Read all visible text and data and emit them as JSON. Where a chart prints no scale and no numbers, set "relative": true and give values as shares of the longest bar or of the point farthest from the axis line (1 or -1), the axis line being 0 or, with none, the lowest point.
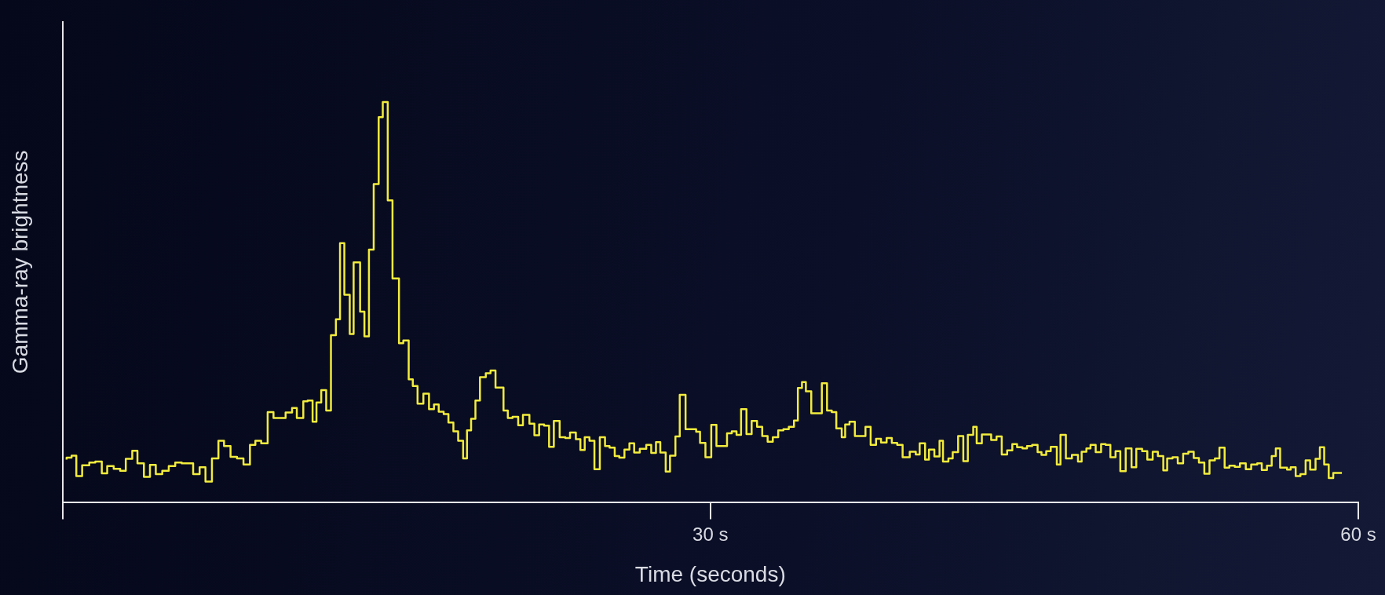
{
  "chart_data": {
    "type": "step",
    "xlabel": "Time (seconds)",
    "ylabel": "Gamma-ray brightness",
    "relative": true,
    "xlim": [
      0,
      60
    ],
    "xticks": [
      {
        "value": 0,
        "label": null
      },
      {
        "value": 30,
        "label": "30 s"
      },
      {
        "value": 60,
        "label": "60 s"
      }
    ],
    "marker": "none",
    "x": [
      0.19,
      0.42,
      0.64,
      0.91,
      1.24,
      1.52,
      1.82,
      2.07,
      2.37,
      2.67,
      2.93,
      3.23,
      3.47,
      3.77,
      4.05,
      4.32,
      4.62,
      4.92,
      5.22,
      5.52,
      6.05,
      6.35,
      6.62,
      6.92,
      7.22,
      7.48,
      7.78,
      8.08,
      8.38,
      8.68,
      8.93,
      9.2,
      9.5,
      9.77,
      10.33,
      10.63,
      10.85,
      11.15,
      11.35,
      11.58,
      11.76,
      11.98,
      12.21,
      12.43,
      12.66,
      12.85,
      13.05,
      13.3,
      13.48,
      13.78,
      13.98,
      14.19,
      14.41,
      14.64,
      14.83,
      15.06,
      15.28,
      15.58,
      15.78,
      16.03,
      16.22,
      16.44,
      16.71,
      16.97,
      17.2,
      17.42,
      17.65,
      17.87,
      18.1,
      18.32,
      18.55,
      18.73,
      18.92,
      19.12,
      19.33,
      19.6,
      19.82,
      20.05,
      20.42,
      20.62,
      20.84,
      21.1,
      21.32,
      21.62,
      21.85,
      22.07,
      22.3,
      22.53,
      22.75,
      23.02,
      23.28,
      23.5,
      23.77,
      23.98,
      24.18,
      24.4,
      24.63,
      24.88,
      25.12,
      25.33,
      25.57,
      25.78,
      26.02,
      26.25,
      26.47,
      26.73,
      27.03,
      27.26,
      27.48,
      27.68,
      27.93,
      28.13,
      28.38,
      28.58,
      28.85,
      29.34,
      29.52,
      29.77,
      30.04,
      30.28,
      30.77,
      30.99,
      31.21,
      31.42,
      31.67,
      31.91,
      32.16,
      32.4,
      32.65,
      32.89,
      33.14,
      33.38,
      33.63,
      33.87,
      34.05,
      34.24,
      34.42,
      34.67,
      35.16,
      35.4,
      35.62,
      35.83,
      36.08,
      36.24,
      36.44,
      36.69,
      37.18,
      37.42,
      37.67,
      37.9,
      38.16,
      38.4,
      38.65,
      38.9,
      39.23,
      39.51,
      39.69,
      39.94,
      40.12,
      40.37,
      40.61,
      40.77,
      41.02,
      41.22,
      41.47,
      41.71,
      41.92,
      42.17,
      42.33,
      42.57,
      43.0,
      43.25,
      43.49,
      43.74,
      43.98,
      44.2,
      44.45,
      44.66,
      44.9,
      45.15,
      45.33,
      45.55,
      45.76,
      46.04,
      46.21,
      46.46,
      46.74,
      47.02,
      47.19,
      47.41,
      47.6,
      47.84,
      48.09,
      48.3,
      48.52,
      48.76,
      48.98,
      49.23,
      49.5,
      49.72,
      49.99,
      50.23,
      50.48,
      50.72,
      50.97,
      51.15,
      51.4,
      51.64,
      51.89,
      52.13,
      52.38,
      52.62,
      52.87,
      53.11,
      53.36,
      53.57,
      53.81,
      54.03,
      54.28,
      54.52,
      54.79,
      55.04,
      55.32,
      55.53,
      55.77,
      55.99,
      56.18,
      56.38,
      56.7,
      56.87,
      57.1,
      57.32,
      57.56,
      57.77,
      58.02,
      58.22,
      58.42,
      58.63,
      58.84,
      59.06,
      59.24
    ],
    "series": [
      {
        "color": "#f2ec3c",
        "values": [
          0.106,
          0.111,
          0.116,
          0.065,
          0.092,
          0.099,
          0.101,
          0.072,
          0.09,
          0.083,
          0.078,
          0.108,
          0.128,
          0.097,
          0.063,
          0.093,
          0.07,
          0.078,
          0.09,
          0.099,
          0.097,
          0.07,
          0.087,
          0.051,
          0.109,
          0.153,
          0.14,
          0.113,
          0.109,
          0.094,
          0.143,
          0.153,
          0.147,
          0.225,
          0.21,
          0.224,
          0.235,
          0.21,
          0.252,
          0.254,
          0.201,
          0.249,
          0.28,
          0.229,
          0.417,
          0.457,
          0.647,
          0.518,
          0.42,
          0.599,
          0.476,
          0.414,
          0.631,
          0.795,
          0.962,
          1,
          0.754,
          0.559,
          0.397,
          0.404,
          0.307,
          0.29,
          0.246,
          0.271,
          0.232,
          0.244,
          0.226,
          0.22,
          0.199,
          0.177,
          0.153,
          0.109,
          0.179,
          0.208,
          0.254,
          0.312,
          0.322,
          0.329,
          0.286,
          0.229,
          0.21,
          0.213,
          0.192,
          0.218,
          0.196,
          0.167,
          0.194,
          0.191,
          0.138,
          0.203,
          0.162,
          0.16,
          0.174,
          0.157,
          0.13,
          0.162,
          0.153,
          0.082,
          0.162,
          0.14,
          0.136,
          0.115,
          0.111,
          0.131,
          0.147,
          0.124,
          0.133,
          0.143,
          0.123,
          0.15,
          0.124,
          0.076,
          0.116,
          0.164,
          0.268,
          0.182,
          0.176,
          0.148,
          0.112,
          0.193,
          0.14,
          0.172,
          0.177,
          0.168,
          0.232,
          0.17,
          0.203,
          0.188,
          0.165,
          0.151,
          0.162,
          0.179,
          0.182,
          0.188,
          0.204,
          0.285,
          0.3,
          0.277,
          0.222,
          0.297,
          0.229,
          0.225,
          0.184,
          0.162,
          0.194,
          0.201,
          0.165,
          0.188,
          0.143,
          0.158,
          0.149,
          0.16,
          0.148,
          0.143,
          0.112,
          0.126,
          0.119,
          0.147,
          0.106,
          0.131,
          0.114,
          0.153,
          0.101,
          0.109,
          0.125,
          0.165,
          0.102,
          0.168,
          0.188,
          0.147,
          0.169,
          0.155,
          0.164,
          0.119,
          0.129,
          0.145,
          0.137,
          0.134,
          0.14,
          0.143,
          0.125,
          0.118,
          0.127,
          0.138,
          0.094,
          0.168,
          0.109,
          0.118,
          0.101,
          0.126,
          0.134,
          0.143,
          0.125,
          0.145,
          0.143,
          0.112,
          0.127,
          0.077,
          0.134,
          0.087,
          0.133,
          0.127,
          0.106,
          0.126,
          0.115,
          0.079,
          0.109,
          0.112,
          0.097,
          0.121,
          0.126,
          0.11,
          0.099,
          0.071,
          0.104,
          0.109,
          0.136,
          0.086,
          0.091,
          0.088,
          0.097,
          0.082,
          0.094,
          0.097,
          0.08,
          0.091,
          0.115,
          0.134,
          0.086,
          0.081,
          0.087,
          0.065,
          0.07,
          0.104,
          0.081,
          0.108,
          0.137,
          0.094,
          0.06,
          0.073,
          0.073
        ]
      }
    ]
  }
}
